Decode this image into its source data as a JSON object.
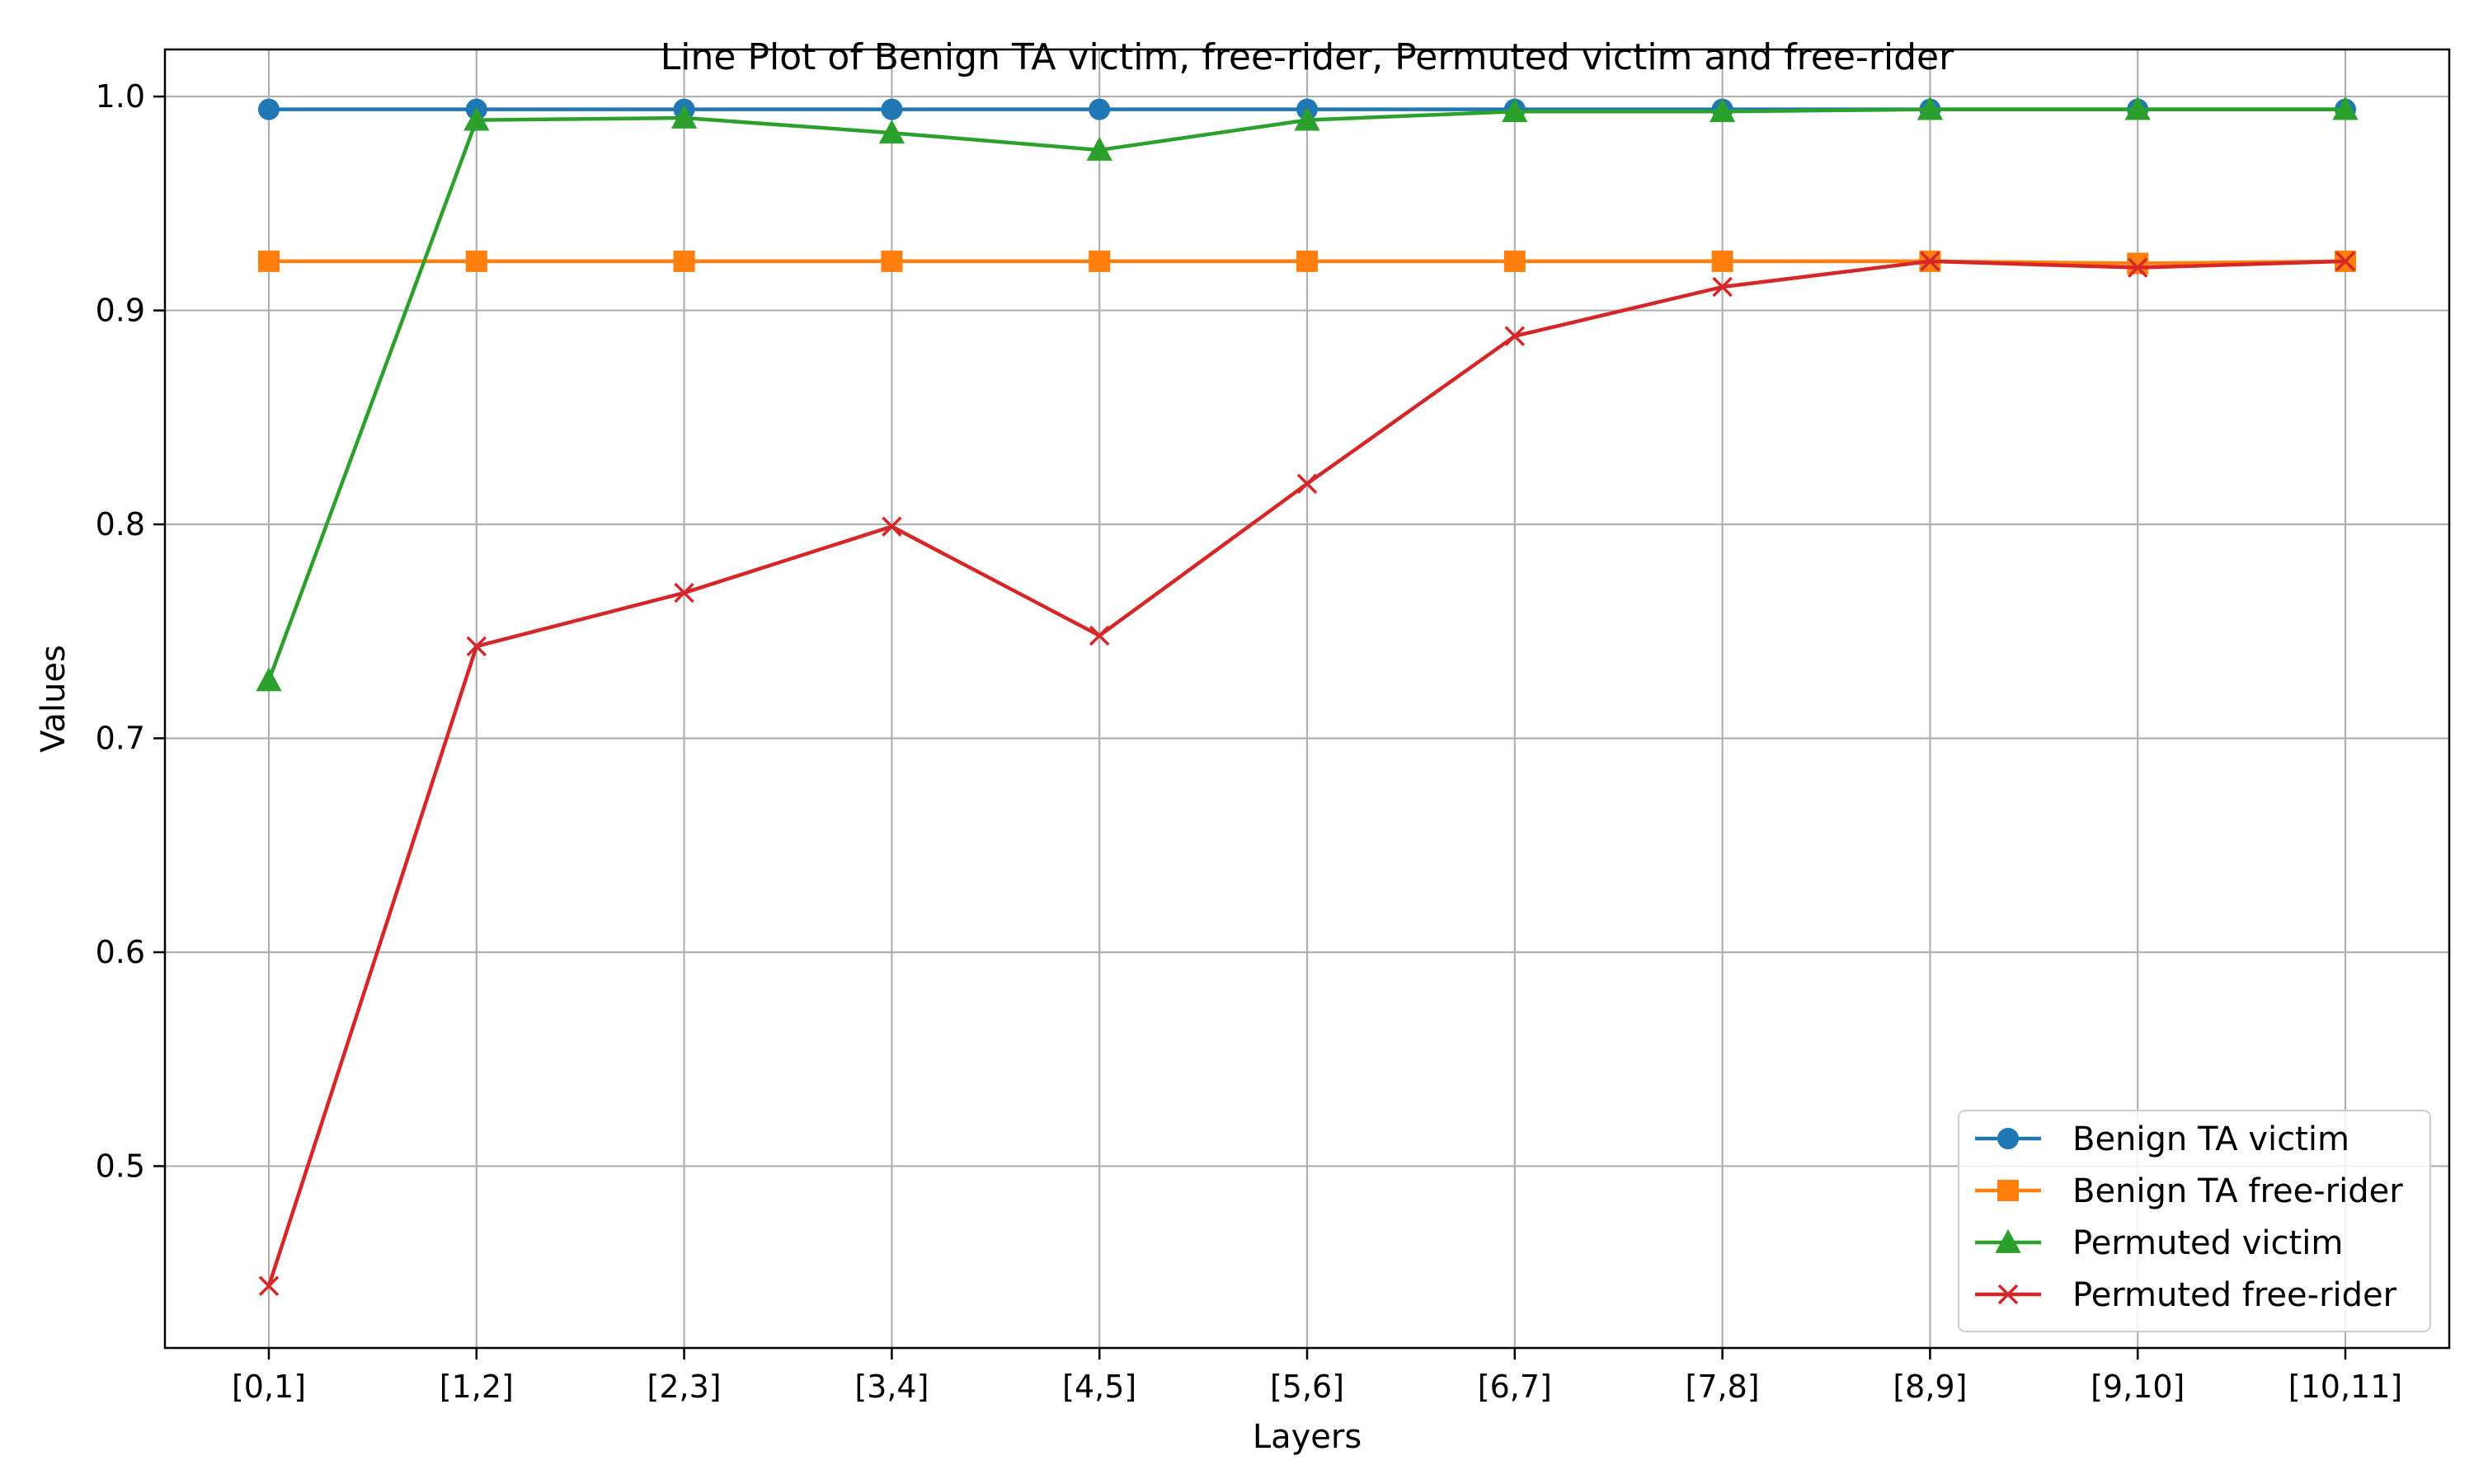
{
  "chart_data": {
    "type": "line",
    "title": "Line Plot of Benign TA victim, free-rider, Permuted victim and free-rider",
    "xlabel": "Layers",
    "ylabel": "Values",
    "categories": [
      "[0,1]",
      "[1,2]",
      "[2,3]",
      "[3,4]",
      "[4,5]",
      "[5,6]",
      "[6,7]",
      "[7,8]",
      "[8,9]",
      "[9,10]",
      "[10,11]"
    ],
    "ylim": [
      0.415,
      1.022
    ],
    "yticks": [
      0.5,
      0.6,
      0.7,
      0.8,
      0.9,
      1.0
    ],
    "ytick_labels": [
      "0.5",
      "0.6",
      "0.7",
      "0.8",
      "0.9",
      "1.0"
    ],
    "grid": true,
    "legend_position": "lower-right",
    "series": [
      {
        "name": "Benign TA victim",
        "color": "#1f77b4",
        "marker": "circle",
        "values": [
          0.994,
          0.994,
          0.994,
          0.994,
          0.994,
          0.994,
          0.994,
          0.994,
          0.994,
          0.994,
          0.994
        ]
      },
      {
        "name": "Benign TA free-rider",
        "color": "#ff7f0e",
        "marker": "square",
        "values": [
          0.923,
          0.923,
          0.923,
          0.923,
          0.923,
          0.923,
          0.923,
          0.923,
          0.923,
          0.922,
          0.923
        ]
      },
      {
        "name": "Permuted victim",
        "color": "#2ca02c",
        "marker": "triangle",
        "values": [
          0.727,
          0.989,
          0.99,
          0.983,
          0.975,
          0.989,
          0.993,
          0.993,
          0.994,
          0.994,
          0.994
        ]
      },
      {
        "name": "Permuted free-rider",
        "color": "#d62728",
        "marker": "x",
        "values": [
          0.444,
          0.743,
          0.768,
          0.799,
          0.748,
          0.819,
          0.888,
          0.911,
          0.923,
          0.92,
          0.923
        ]
      }
    ]
  }
}
